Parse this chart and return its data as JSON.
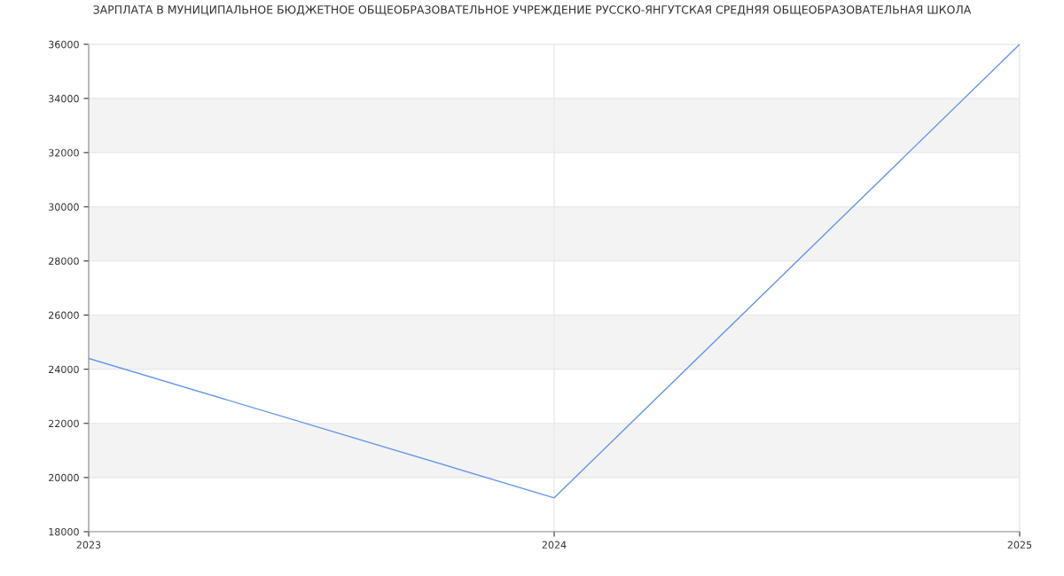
{
  "chart_data": {
    "type": "line",
    "title": "ЗАРПЛАТА В МУНИЦИПАЛЬНОЕ БЮДЖЕТНОЕ ОБЩЕОБРАЗОВАТЕЛЬНОЕ УЧРЕЖДЕНИЕ РУССКО-ЯНГУТСКАЯ СРЕДНЯЯ ОБЩЕОБРАЗОВАТЕЛЬНАЯ ШКОЛА",
    "x": [
      2023,
      2024,
      2025
    ],
    "series": [
      {
        "color": "#6495ed",
        "values": [
          24400,
          19250,
          36000
        ]
      }
    ],
    "xlim": [
      2023,
      2025
    ],
    "xticks": [
      2023,
      2024,
      2025
    ],
    "ylim": [
      18000,
      36000
    ],
    "yticks": [
      18000,
      20000,
      22000,
      24000,
      26000,
      28000,
      30000,
      32000,
      34000,
      36000
    ],
    "bands": [
      {
        "axis": "y",
        "from": 20000,
        "to": 22000,
        "color": "#f3f3f3"
      },
      {
        "axis": "y",
        "from": 24000,
        "to": 26000,
        "color": "#f3f3f3"
      },
      {
        "axis": "y",
        "from": 28000,
        "to": 30000,
        "color": "#f3f3f3"
      },
      {
        "axis": "y",
        "from": 32000,
        "to": 34000,
        "color": "#f3f3f3"
      }
    ],
    "grid": true,
    "legend": false,
    "marker": "none",
    "line_style": "solid"
  }
}
